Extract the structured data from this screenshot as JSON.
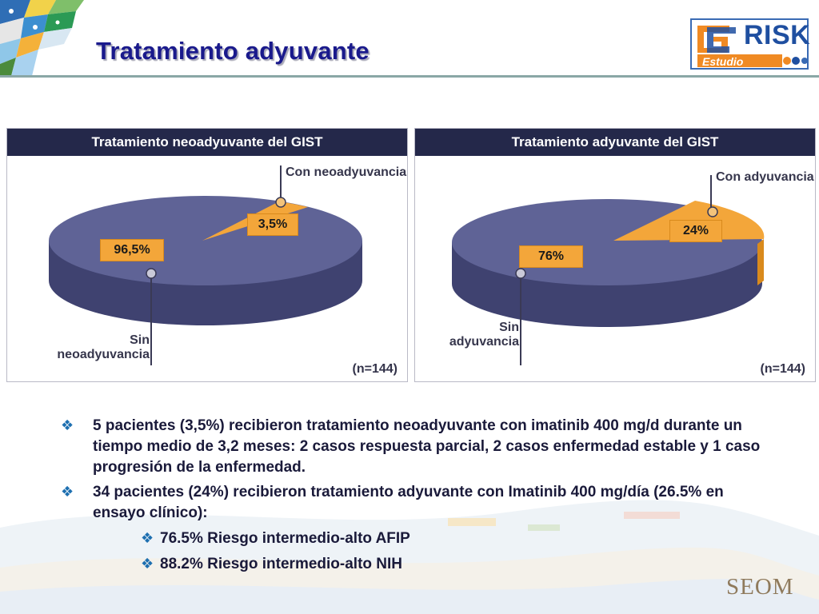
{
  "slide": {
    "title": "Tratamiento adyuvante",
    "logo": {
      "brand_text": "RISK",
      "sub_text": "Estudio"
    },
    "footer_logo": "SEOM"
  },
  "colors": {
    "title": "#1a1a8c",
    "panel_header": "#24284a",
    "pie_main": "#5f6396",
    "pie_side": "#3f4270",
    "pie_highlight": "#f3a63a",
    "bullet_glyph": "#1d6fb0"
  },
  "chart_data": [
    {
      "type": "pie",
      "title": "Tratamiento neoadyuvante del GIST",
      "note": "(n=144)",
      "slices": [
        {
          "label": "Sin neoadyuvancia",
          "value": 96.5,
          "value_label": "96,5%"
        },
        {
          "label": "Con neoadyuvancia",
          "value": 3.5,
          "value_label": "3,5%"
        }
      ]
    },
    {
      "type": "pie",
      "title": "Tratamiento adyuvante del GIST",
      "note": "(n=144)",
      "slices": [
        {
          "label": "Sin adyuvancia",
          "value": 76,
          "value_label": "76%"
        },
        {
          "label": "Con adyuvancia",
          "value": 24,
          "value_label": "24%"
        }
      ]
    }
  ],
  "bullets": [
    {
      "glyph": "❖",
      "text": "5 pacientes (3,5%) recibieron tratamiento neoadyuvante con imatinib 400 mg/d durante un tiempo medio de 3,2 meses: 2 casos respuesta parcial,  2 casos enfermedad estable y 1 caso progresión de la enfermedad."
    },
    {
      "glyph": "❖",
      "text": "34 pacientes (24%) recibieron tratamiento adyuvante con Imatinib 400 mg/día (26.5% en ensayo clínico):"
    }
  ],
  "sub_bullets": [
    {
      "glyph": "❖",
      "text": "76.5% Riesgo intermedio-alto AFIP"
    },
    {
      "glyph": "❖",
      "text": "88.2% Riesgo intermedio-alto NIH"
    }
  ]
}
